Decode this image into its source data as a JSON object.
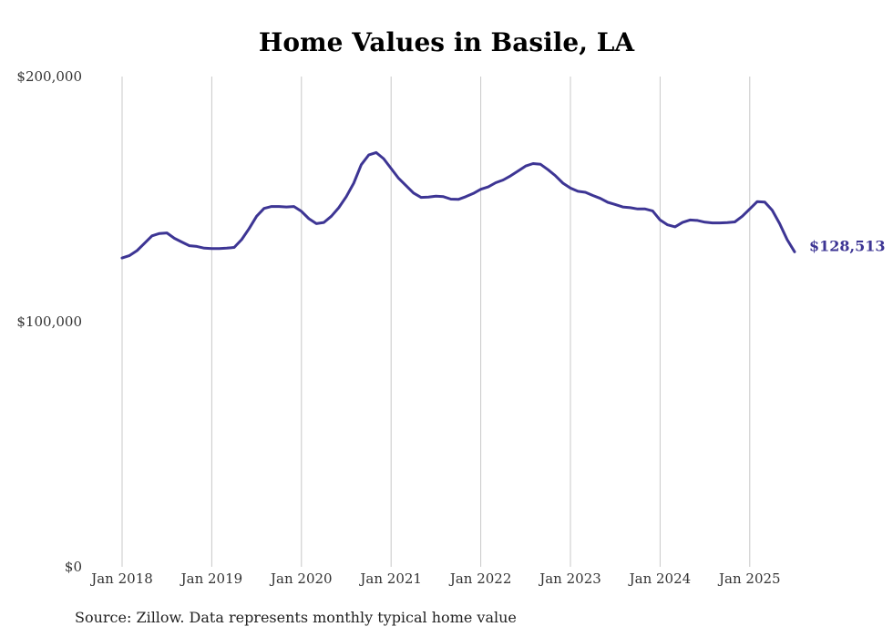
{
  "chart_data": {
    "type": "line",
    "title": "Home Values in Basile, LA",
    "xlabel": "",
    "ylabel": "",
    "ylim": [
      0,
      200000
    ],
    "yticks": [
      0,
      100000,
      200000
    ],
    "ytick_labels": [
      "$0",
      "$100,000",
      "$200,000"
    ],
    "xlim": [
      "2018-01",
      "2025-07"
    ],
    "xticks": [
      "2018-01",
      "2019-01",
      "2020-01",
      "2021-01",
      "2022-01",
      "2023-01",
      "2024-01",
      "2025-01"
    ],
    "xtick_labels": [
      "Jan 2018",
      "Jan 2019",
      "Jan 2020",
      "Jan 2021",
      "Jan 2022",
      "Jan 2023",
      "Jan 2024",
      "Jan 2025"
    ],
    "grid": "vertical",
    "line_color": "#3d3594",
    "grid_color": "#c8c8c8",
    "end_label": "$128,513",
    "series": [
      {
        "x": [
          "2018-01",
          "2018-02",
          "2018-03",
          "2018-04",
          "2018-05",
          "2018-06",
          "2018-07",
          "2018-08",
          "2018-09",
          "2018-10",
          "2018-11",
          "2018-12",
          "2019-01",
          "2019-02",
          "2019-03",
          "2019-04",
          "2019-05",
          "2019-06",
          "2019-07",
          "2019-08",
          "2019-09",
          "2019-10",
          "2019-11",
          "2019-12",
          "2020-01",
          "2020-02",
          "2020-03",
          "2020-04",
          "2020-05",
          "2020-06",
          "2020-07",
          "2020-08",
          "2020-09",
          "2020-10",
          "2020-11",
          "2020-12",
          "2021-01",
          "2021-02",
          "2021-03",
          "2021-04",
          "2021-05",
          "2021-06",
          "2021-07",
          "2021-08",
          "2021-09",
          "2021-10",
          "2021-11",
          "2021-12",
          "2022-01",
          "2022-02",
          "2022-03",
          "2022-04",
          "2022-05",
          "2022-06",
          "2022-07",
          "2022-08",
          "2022-09",
          "2022-10",
          "2022-11",
          "2022-12",
          "2023-01",
          "2023-02",
          "2023-03",
          "2023-04",
          "2023-05",
          "2023-06",
          "2023-07",
          "2023-08",
          "2023-09",
          "2023-10",
          "2023-11",
          "2023-12",
          "2024-01",
          "2024-02",
          "2024-03",
          "2024-04",
          "2024-05",
          "2024-06",
          "2024-07",
          "2024-08",
          "2024-09",
          "2024-10",
          "2024-11",
          "2024-12",
          "2025-01",
          "2025-02",
          "2025-03",
          "2025-04",
          "2025-05",
          "2025-06",
          "2025-07"
        ],
        "values": [
          126000,
          127000,
          129000,
          132000,
          135000,
          136000,
          136200,
          134000,
          132500,
          131000,
          130700,
          130000,
          129800,
          129800,
          130000,
          130300,
          133500,
          138000,
          143000,
          146200,
          147000,
          147000,
          146800,
          147000,
          145000,
          142000,
          140000,
          140500,
          143000,
          146500,
          151000,
          156500,
          164000,
          168000,
          169000,
          166500,
          162500,
          158500,
          155500,
          152500,
          150700,
          150800,
          151200,
          151000,
          150000,
          149900,
          151000,
          152300,
          154000,
          155000,
          156700,
          157800,
          159500,
          161500,
          163500,
          164500,
          164200,
          162000,
          159500,
          156500,
          154500,
          153200,
          152800,
          151500,
          150300,
          148700,
          147800,
          146800,
          146500,
          146000,
          146000,
          145200,
          141500,
          139500,
          138700,
          140500,
          141500,
          141300,
          140600,
          140300,
          140300,
          140400,
          140700,
          143000,
          146000,
          149000,
          148800,
          145500,
          140000,
          133500,
          128513
        ]
      }
    ]
  },
  "source": "Source: Zillow. Data represents monthly typical home value"
}
